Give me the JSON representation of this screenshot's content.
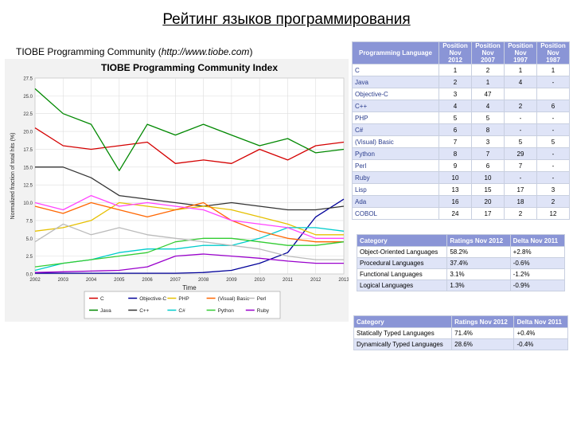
{
  "slide": {
    "title": "Рейтинг языков программирования",
    "subtitle_text": "TIOBE Programming Community (",
    "subtitle_url": "http://www.tiobe.com",
    "subtitle_close": ")"
  },
  "chart_data": {
    "type": "line",
    "title": "TIOBE Programming Community Index",
    "xlabel": "Time",
    "ylabel": "Normalized fraction of total hits (%)",
    "ylim": [
      0,
      27.5
    ],
    "xlim": [
      2002,
      2013
    ],
    "y_ticks": [
      "0.0",
      "2.5",
      "5.0",
      "7.5",
      "10.0",
      "12.5",
      "15.0",
      "17.5",
      "20.0",
      "22.5",
      "25.0",
      "27.5"
    ],
    "x_ticks": [
      "2002",
      "2003",
      "2004",
      "2005",
      "2006",
      "2007",
      "2008",
      "2009",
      "2010",
      "2011",
      "2012",
      "2013"
    ],
    "x": [
      2002,
      2003,
      2004,
      2005,
      2006,
      2007,
      2008,
      2009,
      2010,
      2011,
      2012,
      2013
    ],
    "grid": true,
    "legend_position": "bottom",
    "series": [
      {
        "name": "C",
        "color": "#d40000",
        "values": [
          20.5,
          18.0,
          17.5,
          18.0,
          18.5,
          15.5,
          16.0,
          15.5,
          17.5,
          16.0,
          18.0,
          18.5
        ]
      },
      {
        "name": "Java",
        "color": "#008800",
        "values": [
          26.0,
          22.5,
          21.0,
          14.5,
          21.0,
          19.5,
          21.0,
          19.5,
          18.0,
          19.0,
          17.0,
          17.5
        ]
      },
      {
        "name": "Objective-C",
        "color": "#000099",
        "values": [
          0.1,
          0.1,
          0.1,
          0.1,
          0.1,
          0.1,
          0.2,
          0.5,
          1.5,
          3.0,
          8.0,
          10.5
        ]
      },
      {
        "name": "C++",
        "color": "#333333",
        "values": [
          15.0,
          15.0,
          13.5,
          11.0,
          10.5,
          10.0,
          9.5,
          10.0,
          9.5,
          9.0,
          9.0,
          9.5
        ]
      },
      {
        "name": "PHP",
        "color": "#e6c000",
        "values": [
          6.0,
          6.5,
          7.5,
          10.0,
          9.5,
          9.0,
          9.5,
          9.0,
          8.0,
          7.0,
          5.5,
          5.5
        ]
      },
      {
        "name": "C#",
        "color": "#00cccc",
        "values": [
          0.5,
          1.5,
          2.0,
          3.0,
          3.5,
          3.5,
          4.0,
          4.0,
          5.0,
          6.5,
          6.5,
          6.0
        ]
      },
      {
        "name": "(Visual) Basic",
        "color": "#ff6600",
        "values": [
          9.5,
          8.5,
          10.0,
          9.0,
          8.0,
          9.0,
          10.0,
          7.5,
          6.0,
          5.0,
          4.5,
          4.5
        ]
      },
      {
        "name": "Python",
        "color": "#33cc33",
        "values": [
          1.0,
          1.5,
          2.0,
          2.5,
          3.0,
          4.5,
          5.0,
          5.0,
          4.5,
          4.0,
          4.0,
          4.5
        ]
      },
      {
        "name": "Perl",
        "color": "#bbbbbb",
        "values": [
          4.5,
          7.0,
          5.5,
          6.5,
          5.5,
          5.0,
          4.5,
          4.0,
          3.5,
          2.5,
          2.0,
          2.0
        ]
      },
      {
        "name": "Ruby",
        "color": "#9900cc",
        "values": [
          0.2,
          0.3,
          0.4,
          0.5,
          1.0,
          2.5,
          2.8,
          2.5,
          2.2,
          1.8,
          1.5,
          1.5
        ]
      },
      {
        "name": "",
        "color": "#ff44ff",
        "values": [
          10.0,
          9.0,
          11.0,
          9.5,
          10.0,
          9.5,
          9.0,
          7.5,
          7.0,
          6.5,
          5.0,
          5.0
        ]
      }
    ],
    "legend": [
      "C",
      "Objective-C",
      "PHP",
      "(Visual) Basic",
      "Perl",
      "Java",
      "C++",
      "C#",
      "Python",
      "Ruby"
    ]
  },
  "rank_table": {
    "headers": [
      "Programming Language",
      "Position Nov 2012",
      "Position Nov 2007",
      "Position Nov 1997",
      "Position Nov 1987"
    ],
    "rows": [
      [
        "C",
        "1",
        "2",
        "1",
        "1"
      ],
      [
        "Java",
        "2",
        "1",
        "4",
        "-"
      ],
      [
        "Objective-C",
        "3",
        "47",
        "",
        ""
      ],
      [
        "C++",
        "4",
        "4",
        "2",
        "6"
      ],
      [
        "PHP",
        "5",
        "5",
        "-",
        "-"
      ],
      [
        "C#",
        "6",
        "8",
        "-",
        "-"
      ],
      [
        "(Visual) Basic",
        "7",
        "3",
        "5",
        "5"
      ],
      [
        "Python",
        "8",
        "7",
        "29",
        "-"
      ],
      [
        "Perl",
        "9",
        "6",
        "7",
        "-"
      ],
      [
        "Ruby",
        "10",
        "10",
        "-",
        "-"
      ],
      [
        "Lisp",
        "13",
        "15",
        "17",
        "3"
      ],
      [
        "Ada",
        "16",
        "20",
        "18",
        "2"
      ],
      [
        "COBOL",
        "24",
        "17",
        "2",
        "12"
      ]
    ]
  },
  "category_table": {
    "headers": [
      "Category",
      "Ratings Nov 2012",
      "Delta Nov 2011"
    ],
    "rows": [
      [
        "Object-Oriented Languages",
        "58.2%",
        "+2.8%"
      ],
      [
        "Procedural Languages",
        "37.4%",
        "-0.6%"
      ],
      [
        "Functional Languages",
        "3.1%",
        "-1.2%"
      ],
      [
        "Logical Languages",
        "1.3%",
        "-0.9%"
      ]
    ]
  },
  "typing_table": {
    "headers": [
      "Category",
      "Ratings Nov 2012",
      "Delta Nov 2011"
    ],
    "rows": [
      [
        "Statically Typed Languages",
        "71.4%",
        "+0.4%"
      ],
      [
        "Dynamically Typed Languages",
        "28.6%",
        "-0.4%"
      ]
    ]
  }
}
